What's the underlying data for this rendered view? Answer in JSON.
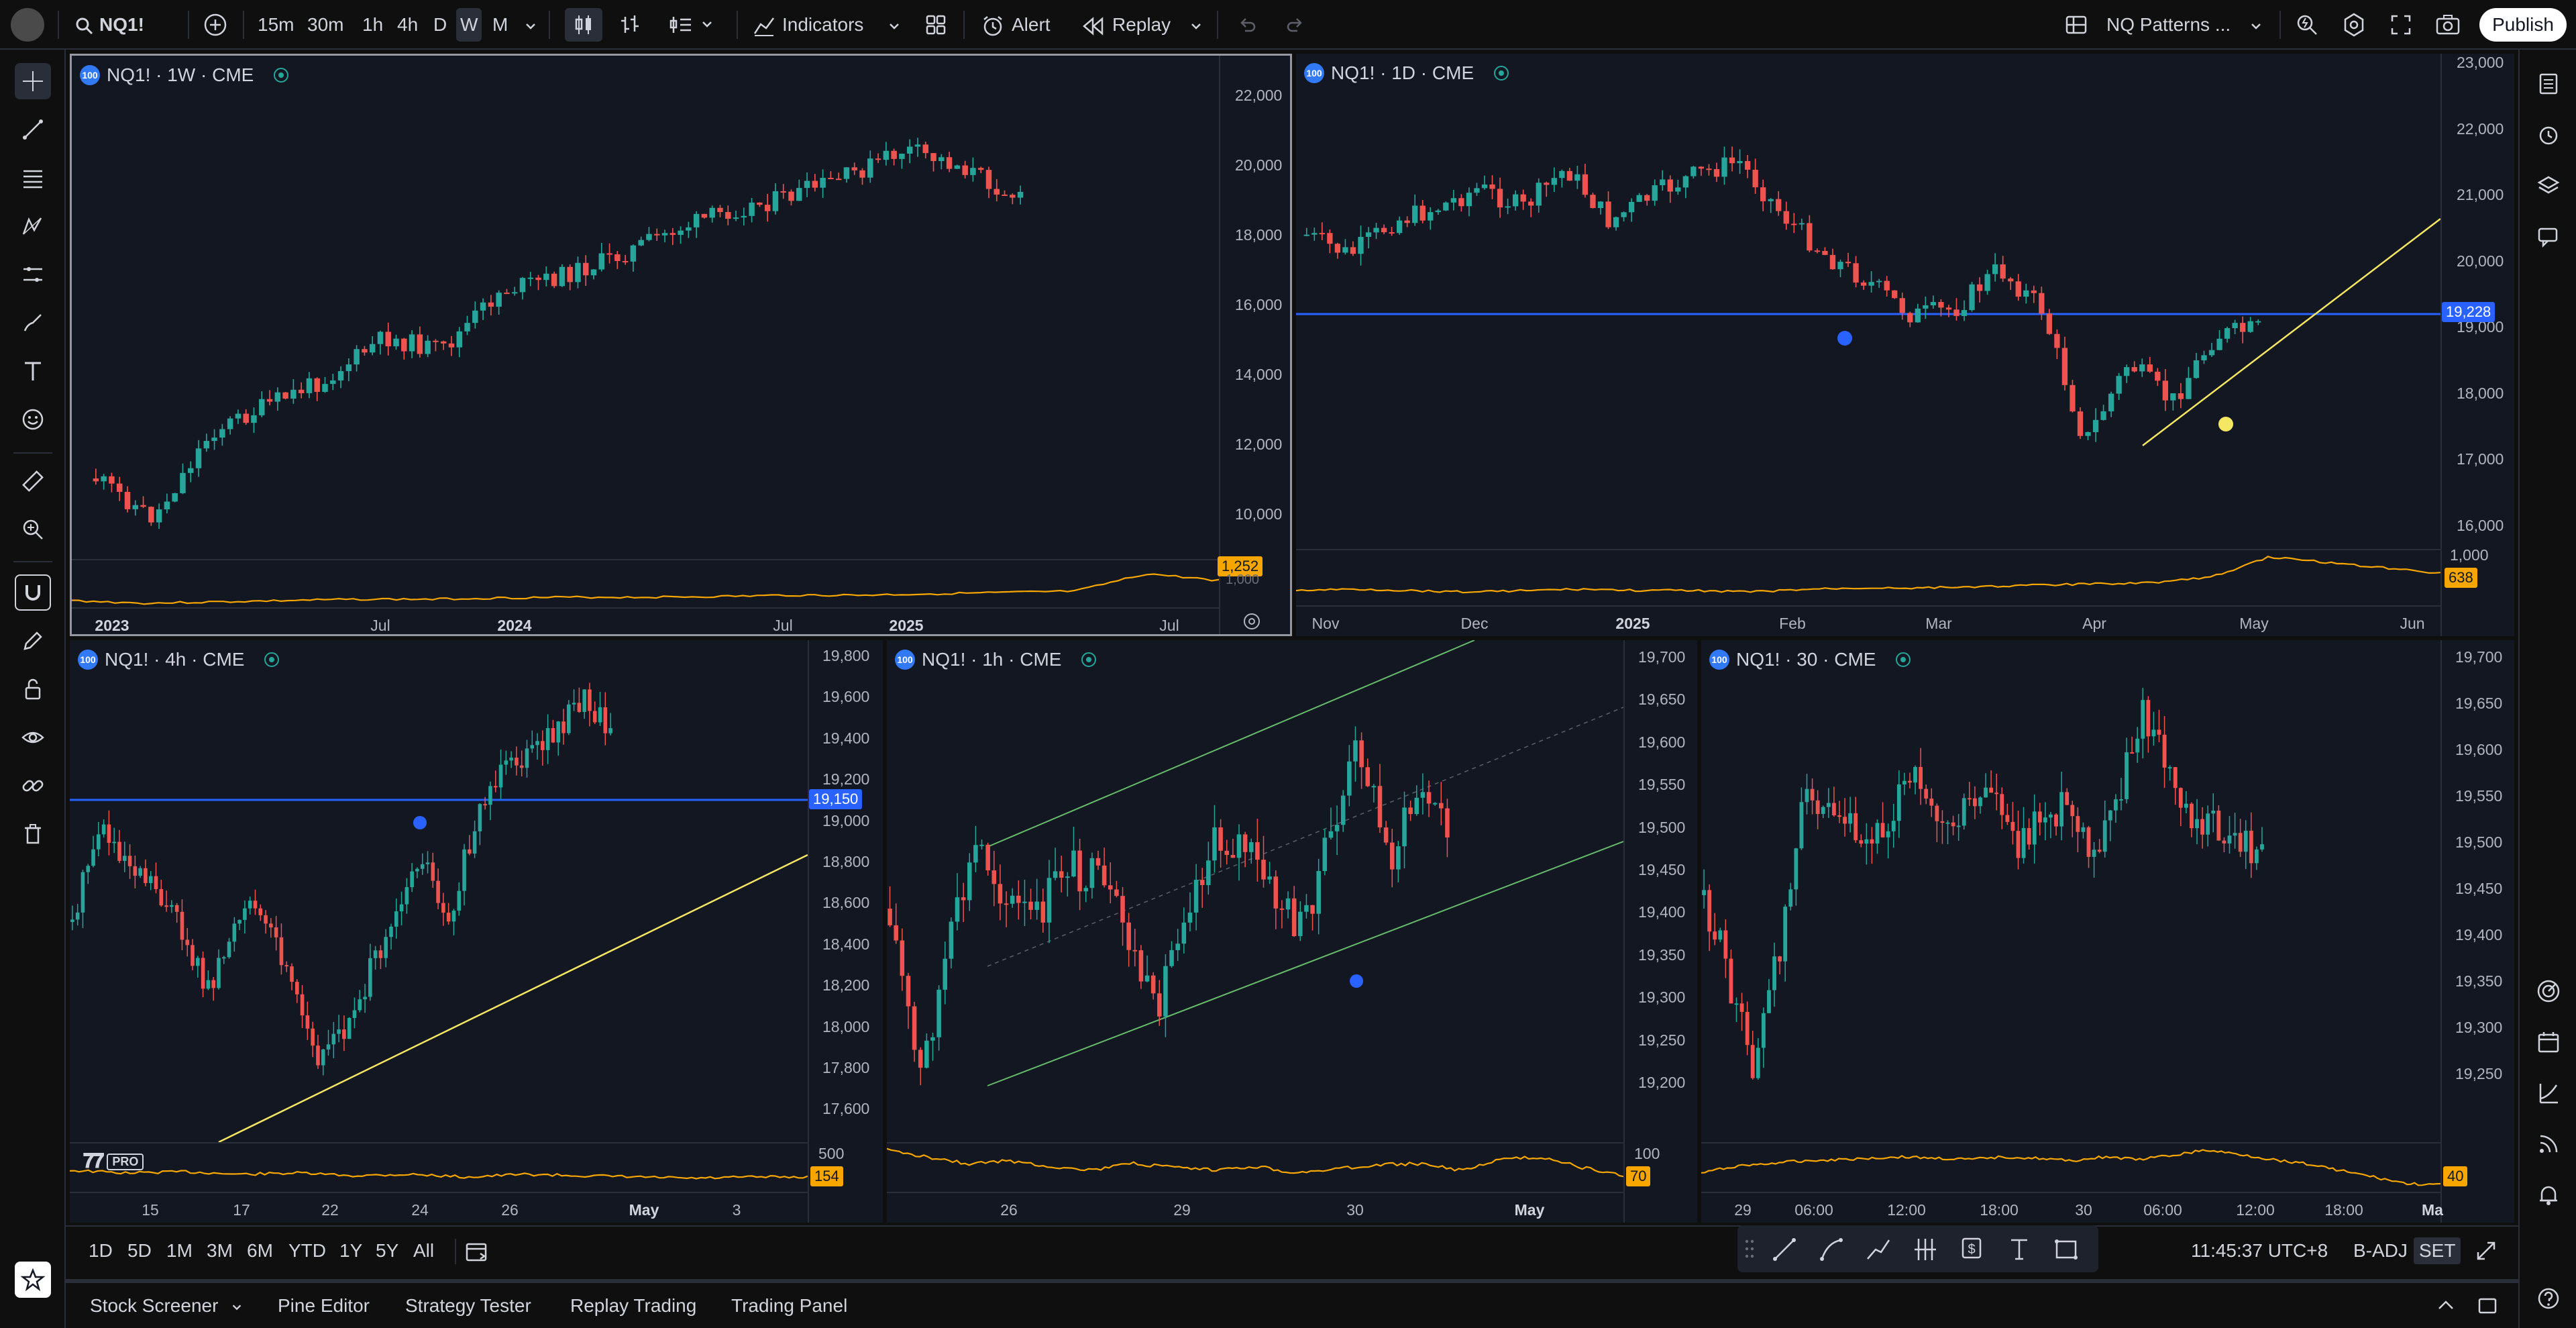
{
  "topbar": {
    "symbol": "NQ1!",
    "intervals": [
      "15m",
      "30m",
      "1h",
      "4h",
      "D",
      "W",
      "M"
    ],
    "active_interval": "W",
    "indicators_label": "Indicators",
    "alert_label": "Alert",
    "replay_label": "Replay",
    "layout_name": "NQ Patterns ...",
    "publish_label": "Publish"
  },
  "colors": {
    "background": "#0f0f0f",
    "pane": "#131722",
    "up": "#26a69a",
    "down": "#ef5350",
    "horizontal_line": "#2962ff",
    "trend_line": "#f5e663",
    "channel": "#66bb6a",
    "volume_line": "#f7a600"
  },
  "charts": [
    {
      "id": "weekly",
      "legend": "NQ1! · 1W · CME",
      "badge": "100",
      "y_ticks": [
        "22,000",
        "20,000",
        "18,000",
        "16,000",
        "14,000",
        "12,000",
        "10,000"
      ],
      "x_ticks": [
        {
          "label": "2023",
          "bold": true
        },
        {
          "label": "Jul",
          "bold": false
        },
        {
          "label": "2024",
          "bold": true
        },
        {
          "label": "Jul",
          "bold": false
        },
        {
          "label": "2025",
          "bold": true
        },
        {
          "label": "Jul",
          "bold": false
        }
      ],
      "volume_tag": "1,252",
      "volume_tag_hidden": "1,000"
    },
    {
      "id": "daily",
      "legend": "NQ1! · 1D · CME",
      "badge": "100",
      "y_ticks": [
        "23,000",
        "22,000",
        "21,000",
        "20,000",
        "19,000",
        "18,000",
        "17,000",
        "16,000"
      ],
      "x_ticks": [
        {
          "label": "Nov",
          "bold": false
        },
        {
          "label": "Dec",
          "bold": false
        },
        {
          "label": "2025",
          "bold": true
        },
        {
          "label": "Feb",
          "bold": false
        },
        {
          "label": "Mar",
          "bold": false
        },
        {
          "label": "Apr",
          "bold": false
        },
        {
          "label": "May",
          "bold": false
        },
        {
          "label": "Jun",
          "bold": false
        }
      ],
      "price_tag": "19,228",
      "volume_scale": "1,000",
      "volume_tag": "638"
    },
    {
      "id": "h4",
      "legend": "NQ1! · 4h · CME",
      "badge": "100",
      "y_ticks": [
        "19,800",
        "19,600",
        "19,400",
        "19,200",
        "19,000",
        "18,800",
        "18,600",
        "18,400",
        "18,200",
        "18,000",
        "17,800",
        "17,600"
      ],
      "x_ticks": [
        {
          "label": "15",
          "bold": false
        },
        {
          "label": "17",
          "bold": false
        },
        {
          "label": "22",
          "bold": false
        },
        {
          "label": "24",
          "bold": false
        },
        {
          "label": "26",
          "bold": false
        },
        {
          "label": "May",
          "bold": true
        },
        {
          "label": "3",
          "bold": false
        }
      ],
      "price_tag": "19,150",
      "volume_scale": "500",
      "volume_tag": "154",
      "watermark": "PRO"
    },
    {
      "id": "h1",
      "legend": "NQ1! · 1h · CME",
      "badge": "100",
      "y_ticks": [
        "19,700",
        "19,650",
        "19,600",
        "19,550",
        "19,500",
        "19,450",
        "19,400",
        "19,350",
        "19,300",
        "19,250",
        "19,200"
      ],
      "x_ticks": [
        {
          "label": "26",
          "bold": false
        },
        {
          "label": "29",
          "bold": false
        },
        {
          "label": "30",
          "bold": false
        },
        {
          "label": "May",
          "bold": true
        }
      ],
      "volume_scale": "100",
      "volume_tag": "70"
    },
    {
      "id": "m30",
      "legend": "NQ1! · 30 · CME",
      "badge": "100",
      "y_ticks": [
        "19,700",
        "19,650",
        "19,600",
        "19,550",
        "19,500",
        "19,450",
        "19,400",
        "19,350",
        "19,300",
        "19,250"
      ],
      "x_ticks": [
        {
          "label": "29",
          "bold": false
        },
        {
          "label": "06:00",
          "bold": false
        },
        {
          "label": "12:00",
          "bold": false
        },
        {
          "label": "18:00",
          "bold": false
        },
        {
          "label": "30",
          "bold": false
        },
        {
          "label": "06:00",
          "bold": false
        },
        {
          "label": "12:00",
          "bold": false
        },
        {
          "label": "18:00",
          "bold": false
        },
        {
          "label": "Ma",
          "bold": true
        }
      ],
      "volume_tag": "40"
    }
  ],
  "range_bar": {
    "ranges": [
      "1D",
      "5D",
      "1M",
      "3M",
      "6M",
      "YTD",
      "1Y",
      "5Y",
      "All"
    ],
    "clock": "11:45:37 UTC+8",
    "adjust": "B-ADJ",
    "session": "SET"
  },
  "bottom_tabs": [
    "Stock Screener",
    "Pine Editor",
    "Strategy Tester",
    "Replay Trading",
    "Trading Panel"
  ]
}
